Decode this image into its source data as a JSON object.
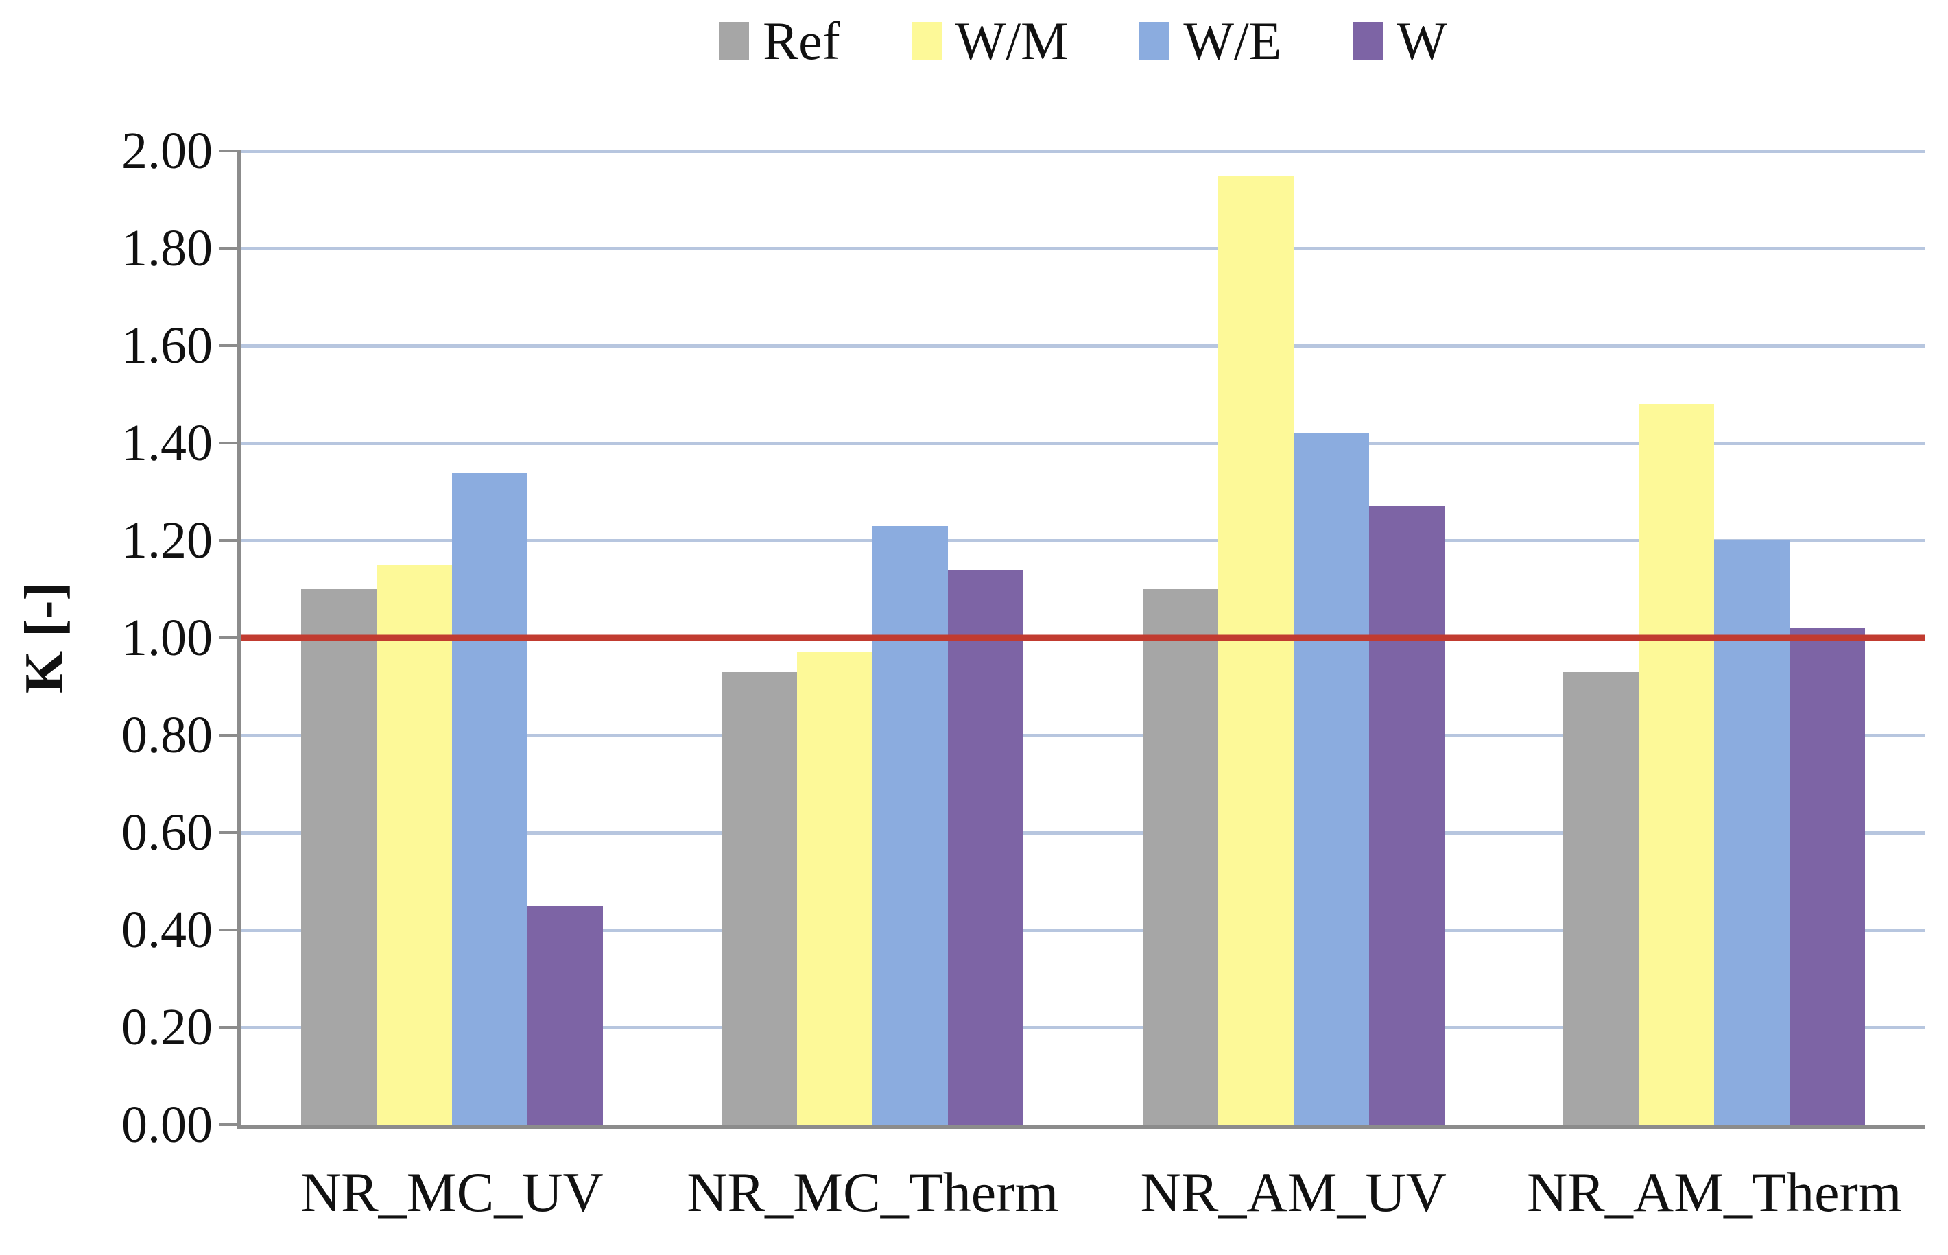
{
  "y_axis": {
    "title": "K [-]"
  },
  "chart_data": {
    "type": "bar",
    "title": "",
    "xlabel": "",
    "ylabel": "K [-]",
    "categories": [
      "NR_MC_UV",
      "NR_MC_Therm",
      "NR_AM_UV",
      "NR_AM_Therm"
    ],
    "series": [
      {
        "name": "Ref",
        "color": "#A6A6A6",
        "values": [
          1.1,
          0.93,
          1.1,
          0.93
        ]
      },
      {
        "name": "W/M",
        "color": "#FDF998",
        "values": [
          1.15,
          0.97,
          1.95,
          1.48
        ]
      },
      {
        "name": "W/E",
        "color": "#8BACDF",
        "values": [
          1.34,
          1.23,
          1.42,
          1.2
        ]
      },
      {
        "name": "W",
        "color": "#7D64A5",
        "values": [
          0.45,
          1.14,
          1.27,
          1.02
        ]
      }
    ],
    "ylim": [
      0.0,
      2.0
    ],
    "y_tick_step": 0.2,
    "y_tick_labels": [
      "0.00",
      "0.20",
      "0.40",
      "0.60",
      "0.80",
      "1.00",
      "1.20",
      "1.40",
      "1.60",
      "1.80",
      "2.00"
    ],
    "reference_line": {
      "value": 1.0,
      "color": "#C13B30"
    },
    "grid": "horizontal",
    "gridline_color": "#B7C6DF",
    "axis_color": "#8C8C8C",
    "legend_position": "top"
  }
}
